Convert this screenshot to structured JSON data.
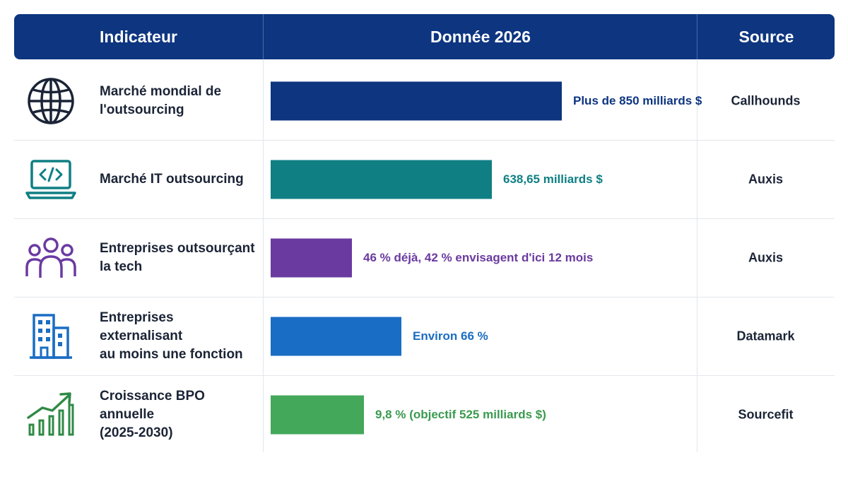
{
  "header": {
    "col1": "Indicateur",
    "col2": "Donnée 2026",
    "col3": "Source"
  },
  "chart_data": {
    "type": "bar",
    "categories": [
      "Marché mondial de l'outsourcing",
      "Marché IT outsourcing",
      "Entreprises outsourçant la tech",
      "Entreprises externalisant au moins une fonction",
      "Croissance BPO annuelle (2025-2030)"
    ],
    "rows": [
      {
        "label_lines": [
          "Marché mondial de",
          "l'outsourcing"
        ],
        "value_label": "Plus de 850 milliards $",
        "bar_fraction": 1.0,
        "color": "#0d3580",
        "source": "Callhounds",
        "icon": "globe-icon"
      },
      {
        "label_lines": [
          "Marché IT outsourcing"
        ],
        "value_label": "638,65 milliards $",
        "bar_fraction": 0.76,
        "color": "#0f7f84",
        "source": "Auxis",
        "icon": "laptop-code-icon"
      },
      {
        "label_lines": [
          "Entreprises outsourçant",
          "la tech"
        ],
        "value_label": "46 % déjà, 42 % envisagent d'ici 12 mois",
        "bar_fraction": 0.28,
        "color": "#6a3aa0",
        "source": "Auxis",
        "icon": "people-group-icon"
      },
      {
        "label_lines": [
          "Entreprises externalisant",
          "au moins une fonction"
        ],
        "value_label": "Environ 66 %",
        "bar_fraction": 0.45,
        "color": "#1a6dc4",
        "source": "Datamark",
        "icon": "building-icon"
      },
      {
        "label_lines": [
          "Croissance BPO annuelle",
          "(2025-2030)"
        ],
        "value_label": "9,8 % (objectif 525 milliards $)",
        "bar_fraction": 0.32,
        "color": "#43a85a",
        "source": "Sourcefit",
        "icon": "growth-chart-icon"
      }
    ]
  }
}
